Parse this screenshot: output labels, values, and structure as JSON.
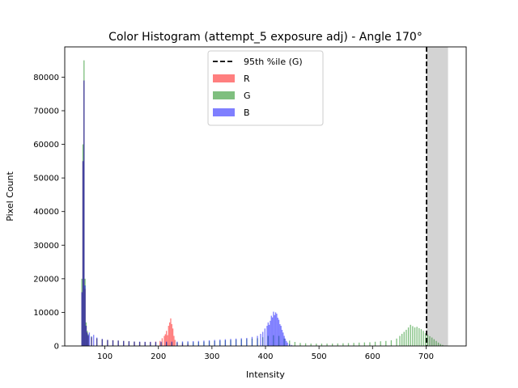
{
  "chart_data": {
    "type": "bar",
    "title": "Color Histogram (attempt_5 exposure adj) - Angle 170°",
    "xlabel": "Intensity",
    "ylabel": "Pixel Count",
    "xlim": [
      25,
      775
    ],
    "ylim": [
      0,
      89000
    ],
    "x_ticks": [
      100,
      200,
      300,
      400,
      500,
      600,
      700
    ],
    "y_ticks": [
      0,
      10000,
      20000,
      30000,
      40000,
      50000,
      60000,
      70000,
      80000
    ],
    "grid": false,
    "legend_position": "top-center",
    "legend": [
      {
        "label": "95th %ile (G)",
        "kind": "line",
        "color": "#000000"
      },
      {
        "label": "R",
        "kind": "patch",
        "color": "#ff0000"
      },
      {
        "label": "G",
        "kind": "patch",
        "color": "#008000"
      },
      {
        "label": "B",
        "kind": "patch",
        "color": "#0000ff"
      }
    ],
    "percentile_line": {
      "name": "95th %ile (G)",
      "x": 701
    },
    "shaded_region": {
      "x": [
        701,
        741
      ],
      "color": "#d3d3d3"
    },
    "bin_width": 2,
    "series": [
      {
        "name": "R",
        "color": "#ff0000",
        "points": [
          [
            57,
            16000
          ],
          [
            59,
            55000
          ],
          [
            61,
            79000
          ],
          [
            63,
            17000
          ],
          [
            65,
            6000
          ],
          [
            67,
            4000
          ],
          [
            69,
            3000
          ],
          [
            75,
            2500
          ],
          [
            85,
            2200
          ],
          [
            95,
            2000
          ],
          [
            105,
            1800
          ],
          [
            115,
            1700
          ],
          [
            125,
            1600
          ],
          [
            135,
            1500
          ],
          [
            145,
            1400
          ],
          [
            155,
            1300
          ],
          [
            165,
            1200
          ],
          [
            175,
            1200
          ],
          [
            185,
            1200
          ],
          [
            195,
            1300
          ],
          [
            203,
            1500
          ],
          [
            207,
            2300
          ],
          [
            211,
            3000
          ],
          [
            213,
            3500
          ],
          [
            215,
            4500
          ],
          [
            217,
            3200
          ],
          [
            219,
            6000
          ],
          [
            221,
            7000
          ],
          [
            223,
            8200
          ],
          [
            225,
            6500
          ],
          [
            227,
            5200
          ],
          [
            229,
            3000
          ],
          [
            231,
            1800
          ],
          [
            235,
            1000
          ],
          [
            245,
            700
          ],
          [
            255,
            500
          ]
        ]
      },
      {
        "name": "G",
        "color": "#008000",
        "points": [
          [
            57,
            20000
          ],
          [
            59,
            60000
          ],
          [
            61,
            85000
          ],
          [
            63,
            20000
          ],
          [
            65,
            7000
          ],
          [
            67,
            4500
          ],
          [
            69,
            3500
          ],
          [
            75,
            2800
          ],
          [
            85,
            2300
          ],
          [
            95,
            2000
          ],
          [
            105,
            1800
          ],
          [
            115,
            1700
          ],
          [
            125,
            1600
          ],
          [
            135,
            1500
          ],
          [
            145,
            1400
          ],
          [
            155,
            1300
          ],
          [
            165,
            1200
          ],
          [
            175,
            1150
          ],
          [
            185,
            1100
          ],
          [
            195,
            1100
          ],
          [
            205,
            1100
          ],
          [
            215,
            1100
          ],
          [
            225,
            1100
          ],
          [
            235,
            1100
          ],
          [
            245,
            1100
          ],
          [
            255,
            1100
          ],
          [
            265,
            1150
          ],
          [
            275,
            1200
          ],
          [
            285,
            1300
          ],
          [
            295,
            1400
          ],
          [
            305,
            1500
          ],
          [
            315,
            1600
          ],
          [
            325,
            1700
          ],
          [
            335,
            1800
          ],
          [
            345,
            1900
          ],
          [
            355,
            2000
          ],
          [
            365,
            2100
          ],
          [
            375,
            2200
          ],
          [
            385,
            2300
          ],
          [
            395,
            2600
          ],
          [
            405,
            3000
          ],
          [
            415,
            3200
          ],
          [
            425,
            3000
          ],
          [
            435,
            2200
          ],
          [
            445,
            1600
          ],
          [
            455,
            1200
          ],
          [
            465,
            900
          ],
          [
            475,
            800
          ],
          [
            485,
            700
          ],
          [
            495,
            700
          ],
          [
            505,
            700
          ],
          [
            515,
            700
          ],
          [
            525,
            700
          ],
          [
            535,
            750
          ],
          [
            545,
            800
          ],
          [
            555,
            850
          ],
          [
            565,
            900
          ],
          [
            575,
            1000
          ],
          [
            585,
            1050
          ],
          [
            595,
            1100
          ],
          [
            605,
            1250
          ],
          [
            615,
            1400
          ],
          [
            625,
            1500
          ],
          [
            635,
            1700
          ],
          [
            645,
            2200
          ],
          [
            651,
            3000
          ],
          [
            655,
            3600
          ],
          [
            659,
            4200
          ],
          [
            663,
            4800
          ],
          [
            667,
            5500
          ],
          [
            671,
            6300
          ],
          [
            675,
            5900
          ],
          [
            679,
            5500
          ],
          [
            683,
            5700
          ],
          [
            687,
            5300
          ],
          [
            691,
            5000
          ],
          [
            695,
            4500
          ],
          [
            699,
            3800
          ],
          [
            703,
            3300
          ],
          [
            707,
            2900
          ],
          [
            711,
            2500
          ],
          [
            715,
            2000
          ],
          [
            719,
            1500
          ],
          [
            723,
            1000
          ],
          [
            727,
            600
          ],
          [
            731,
            300
          ]
        ]
      },
      {
        "name": "B",
        "color": "#0000ff",
        "points": [
          [
            57,
            16000
          ],
          [
            59,
            55000
          ],
          [
            61,
            79000
          ],
          [
            63,
            18000
          ],
          [
            65,
            6000
          ],
          [
            67,
            4000
          ],
          [
            69,
            3200
          ],
          [
            71,
            4000
          ],
          [
            75,
            2800
          ],
          [
            79,
            3300
          ],
          [
            85,
            2500
          ],
          [
            95,
            2100
          ],
          [
            105,
            1800
          ],
          [
            115,
            1700
          ],
          [
            125,
            1600
          ],
          [
            135,
            1500
          ],
          [
            145,
            1400
          ],
          [
            155,
            1300
          ],
          [
            165,
            1300
          ],
          [
            175,
            1250
          ],
          [
            185,
            1250
          ],
          [
            195,
            1250
          ],
          [
            205,
            1300
          ],
          [
            215,
            1300
          ],
          [
            225,
            1300
          ],
          [
            235,
            1300
          ],
          [
            245,
            1350
          ],
          [
            255,
            1400
          ],
          [
            265,
            1450
          ],
          [
            275,
            1500
          ],
          [
            285,
            1600
          ],
          [
            295,
            1700
          ],
          [
            305,
            1800
          ],
          [
            315,
            1900
          ],
          [
            325,
            2000
          ],
          [
            335,
            2100
          ],
          [
            345,
            2200
          ],
          [
            355,
            2300
          ],
          [
            365,
            2400
          ],
          [
            375,
            2700
          ],
          [
            385,
            3000
          ],
          [
            391,
            3600
          ],
          [
            395,
            4200
          ],
          [
            399,
            5200
          ],
          [
            403,
            6000
          ],
          [
            405,
            7000
          ],
          [
            407,
            6300
          ],
          [
            409,
            7500
          ],
          [
            411,
            9000
          ],
          [
            413,
            8500
          ],
          [
            415,
            10200
          ],
          [
            417,
            9200
          ],
          [
            419,
            10000
          ],
          [
            421,
            9600
          ],
          [
            423,
            8400
          ],
          [
            425,
            7800
          ],
          [
            427,
            6500
          ],
          [
            429,
            6000
          ],
          [
            431,
            4800
          ],
          [
            433,
            4000
          ],
          [
            435,
            3000
          ],
          [
            437,
            2200
          ],
          [
            439,
            1500
          ],
          [
            441,
            1000
          ],
          [
            445,
            600
          ],
          [
            449,
            300
          ]
        ]
      }
    ]
  }
}
